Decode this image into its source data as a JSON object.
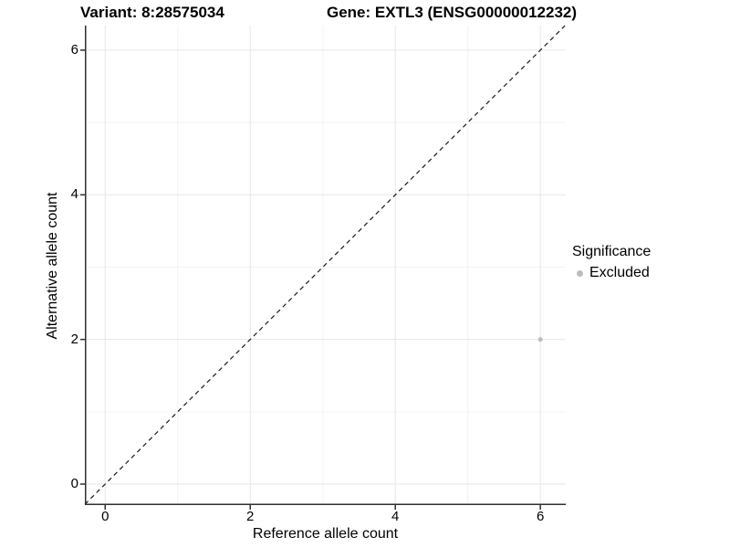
{
  "chart_data": {
    "type": "scatter",
    "title_left": "Variant: 8:28575034",
    "title_right": "Gene: EXTL3 (ENSG00000012232)",
    "xlabel": "Reference allele count",
    "ylabel": "Alternative allele count",
    "xlim": [
      -0.28,
      6.35
    ],
    "ylim": [
      -0.29,
      6.34
    ],
    "x_ticks": [
      0,
      2,
      4,
      6
    ],
    "y_ticks": [
      0,
      2,
      4,
      6
    ],
    "x_minor_ticks": [
      1,
      3,
      5
    ],
    "y_minor_ticks": [
      1,
      3,
      5
    ],
    "grid": "major and minor gridlines, white panel background",
    "points": [
      {
        "x": 6,
        "y": 2,
        "series": "Excluded"
      }
    ],
    "reference_line": {
      "type": "identity y=x",
      "style": "dashed",
      "from": [
        -0.28,
        -0.28
      ],
      "to": [
        6.34,
        6.34
      ]
    },
    "legend": {
      "title": "Significance",
      "position": "right",
      "items": [
        {
          "label": "Excluded",
          "color": "#bcbcbc"
        }
      ]
    }
  },
  "colors": {
    "background": "#ffffff",
    "grid_major": "#e7e7e7",
    "grid_minor": "#f3f3f3",
    "axis_line": "#2f2f2f",
    "tick_mark": "#2f2f2f",
    "text": "#000000",
    "point": "#bcbcbc",
    "reference_line": "#1a1a1a"
  }
}
